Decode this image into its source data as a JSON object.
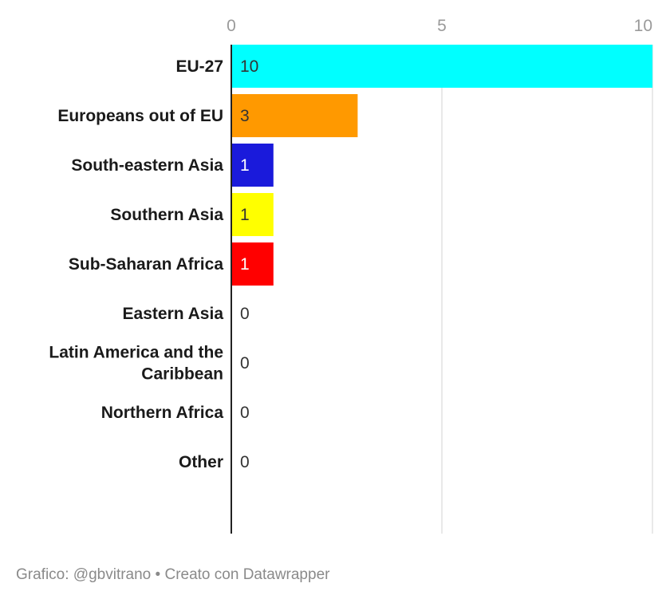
{
  "chart_data": {
    "type": "bar",
    "orientation": "horizontal",
    "categories": [
      [
        "EU-27"
      ],
      [
        "Europeans out of EU"
      ],
      [
        "South-eastern Asia"
      ],
      [
        "Southern Asia"
      ],
      [
        "Sub-Saharan Africa"
      ],
      [
        "Eastern Asia"
      ],
      [
        "Latin America and the",
        "Caribbean"
      ],
      [
        "Northern Africa"
      ],
      [
        "Other"
      ]
    ],
    "values": [
      10,
      3,
      1,
      1,
      1,
      0,
      0,
      0,
      0
    ],
    "value_labels": [
      "10",
      "3",
      "1",
      "1",
      "1",
      "0",
      "0",
      "0",
      "0"
    ],
    "colors": [
      "#00ffff",
      "#ff9900",
      "#1a1adb",
      "#ffff00",
      "#ff0000",
      "#cccccc",
      "#cccccc",
      "#cccccc",
      "#cccccc"
    ],
    "label_colors": [
      "#333333",
      "#333333",
      "#ffffff",
      "#333333",
      "#ffffff",
      "#333333",
      "#333333",
      "#333333",
      "#333333"
    ],
    "xlim": [
      0,
      10
    ],
    "ticks": [
      0,
      5,
      10
    ],
    "tick_labels": [
      "0",
      "5",
      "10"
    ],
    "grid": true,
    "title": "",
    "xlabel": "",
    "ylabel": ""
  },
  "footer": {
    "credit": "Grafico: @gbvitrano",
    "separator": "•",
    "tool": "Creato con Datawrapper"
  }
}
